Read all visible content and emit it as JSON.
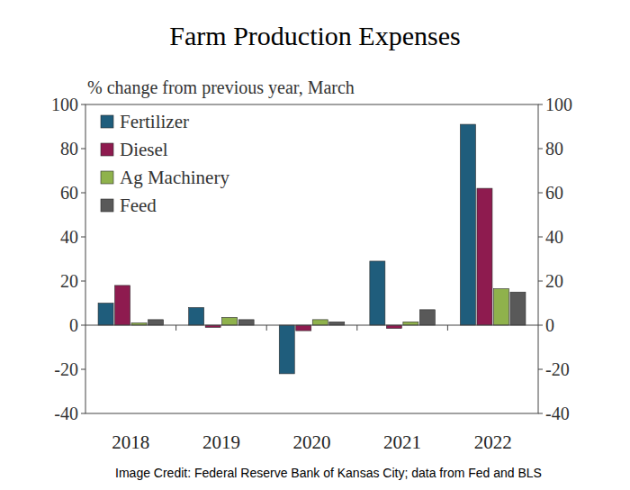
{
  "chart_data": {
    "type": "bar",
    "title": "Farm Production Expenses",
    "subtitle": "% change from previous year, March",
    "source": "Image Credit: Federal Reserve Bank of Kansas City; data from Fed and BLS",
    "categories": [
      "2018",
      "2019",
      "2020",
      "2021",
      "2022"
    ],
    "series": [
      {
        "name": "Fertilizer",
        "color": "#1f5d7c",
        "values": [
          10,
          8,
          -22,
          29,
          91
        ]
      },
      {
        "name": "Diesel",
        "color": "#8e1b4f",
        "values": [
          18,
          -1,
          -2.5,
          -1.5,
          62
        ]
      },
      {
        "name": "Ag Machinery",
        "color": "#8fb24c",
        "values": [
          1,
          3.5,
          2.5,
          1.5,
          16.5
        ]
      },
      {
        "name": "Feed",
        "color": "#595959",
        "values": [
          2.5,
          2.5,
          1.5,
          7,
          15
        ]
      }
    ],
    "ylim": [
      -40,
      100
    ],
    "yticks": [
      -40,
      -20,
      0,
      20,
      40,
      60,
      80,
      100
    ],
    "y2lim": [
      -40,
      100
    ],
    "y2ticks": [
      -40,
      -20,
      0,
      20,
      40,
      60,
      80,
      100
    ],
    "legend": "upper left",
    "grid": false
  }
}
